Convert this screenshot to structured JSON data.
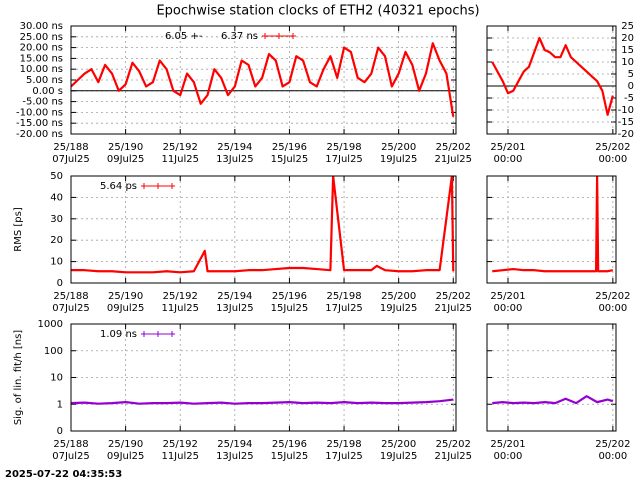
{
  "title": "Epochwise station clocks of ETH2 (40321 epochs)",
  "timestamp": "2025-07-22 04:35:53",
  "chart_data": [
    {
      "type": "line",
      "grid": true,
      "zeroaxis": true,
      "xlim": [
        188,
        202.1
      ],
      "ylim": [
        -20,
        30
      ],
      "xticks": [
        {
          "value": 188,
          "label": "25/188"
        },
        {
          "value": 190,
          "label": "25/190"
        },
        {
          "value": 192,
          "label": "25/192"
        },
        {
          "value": 194,
          "label": "25/194"
        },
        {
          "value": 196,
          "label": "25/196"
        },
        {
          "value": 198,
          "label": "25/198"
        },
        {
          "value": 200,
          "label": "25/200"
        },
        {
          "value": 202,
          "label": "25/202"
        }
      ],
      "xtick_dates": [
        "07Jul25",
        "09Jul25",
        "11Jul25",
        "13Jul25",
        "15Jul25",
        "17Jul25",
        "19Jul25",
        "21Jul25"
      ],
      "yticks": [
        {
          "value": -20,
          "label": "-20.00 ns"
        },
        {
          "value": -15,
          "label": "-15.00 ns"
        },
        {
          "value": -10,
          "label": "-10.00 ns"
        },
        {
          "value": -5,
          "label": "-5.00 ns"
        },
        {
          "value": 0,
          "label": "0.00 s"
        },
        {
          "value": 5,
          "label": "5.00 ns"
        },
        {
          "value": 10,
          "label": "10.00 ns"
        },
        {
          "value": 15,
          "label": "15.00 ns"
        },
        {
          "value": 20,
          "label": "20.00 ns"
        },
        {
          "value": 25,
          "label": "25.00 ns"
        },
        {
          "value": 30,
          "label": "30.00 ns"
        }
      ],
      "legend_prefix": "6.05 +-",
      "x": [
        188,
        188.25,
        188.5,
        188.75,
        189,
        189.25,
        189.5,
        189.75,
        190,
        190.25,
        190.5,
        190.75,
        191,
        191.25,
        191.5,
        191.75,
        192,
        192.25,
        192.5,
        192.75,
        193,
        193.25,
        193.5,
        193.75,
        194,
        194.25,
        194.5,
        194.75,
        195,
        195.25,
        195.5,
        195.75,
        196,
        196.25,
        196.5,
        196.75,
        197,
        197.25,
        197.5,
        197.75,
        198,
        198.25,
        198.5,
        198.75,
        199,
        199.25,
        199.5,
        199.75,
        200,
        200.25,
        200.5,
        200.75,
        201,
        201.25,
        201.5,
        201.75,
        202
      ],
      "series": [
        {
          "name": "6.37 ns",
          "color": "#ff0000",
          "values": [
            2,
            5,
            8,
            10,
            4,
            12,
            8,
            0,
            3,
            13,
            9,
            2,
            4,
            14,
            10,
            0,
            -2,
            8,
            4,
            -6,
            -2,
            10,
            6,
            -2,
            2,
            14,
            12,
            2,
            6,
            17,
            14,
            2,
            4,
            16,
            14,
            4,
            2,
            10,
            16,
            6,
            20,
            18,
            6,
            4,
            8,
            20,
            16,
            2,
            8,
            18,
            12,
            0,
            8,
            22,
            14,
            8,
            -12
          ]
        }
      ]
    },
    {
      "type": "line",
      "grid": true,
      "zeroaxis": true,
      "ytick_side": "right",
      "xlim": [
        200.8,
        202.03
      ],
      "ylim": [
        -20,
        25
      ],
      "xticks": [
        {
          "value": 201,
          "label": "25/201"
        },
        {
          "value": 202,
          "label": "25/202"
        }
      ],
      "xtick_dates": [
        "00:00",
        "00:00"
      ],
      "yticks": [
        -20,
        -15,
        -10,
        -5,
        0,
        5,
        10,
        15,
        20,
        25
      ],
      "x": [
        200.85,
        200.9,
        200.95,
        201,
        201.05,
        201.1,
        201.15,
        201.2,
        201.25,
        201.3,
        201.35,
        201.4,
        201.45,
        201.5,
        201.55,
        201.6,
        201.65,
        201.7,
        201.75,
        201.8,
        201.85,
        201.9,
        201.95,
        202
      ],
      "series": [
        {
          "color": "#ff0000",
          "values": [
            10,
            6,
            2,
            -3,
            -2,
            2,
            6,
            8,
            14,
            20,
            15,
            14,
            12,
            12,
            17,
            12,
            10,
            8,
            6,
            4,
            2,
            -2,
            -12,
            -4
          ]
        }
      ]
    },
    {
      "type": "line",
      "grid": true,
      "ylabel": "RMS [ps]",
      "xlim": [
        188,
        202.1
      ],
      "ylim": [
        0,
        50
      ],
      "xticks": [
        {
          "value": 188,
          "label": "25/188"
        },
        {
          "value": 190,
          "label": "25/190"
        },
        {
          "value": 192,
          "label": "25/192"
        },
        {
          "value": 194,
          "label": "25/194"
        },
        {
          "value": 196,
          "label": "25/196"
        },
        {
          "value": 198,
          "label": "25/198"
        },
        {
          "value": 200,
          "label": "25/200"
        },
        {
          "value": 202,
          "label": "25/202"
        }
      ],
      "xtick_dates": [
        "07Jul25",
        "09Jul25",
        "11Jul25",
        "13Jul25",
        "15Jul25",
        "17Jul25",
        "19Jul25",
        "21Jul25"
      ],
      "yticks": [
        0,
        10,
        20,
        30,
        40,
        50
      ],
      "x": [
        188,
        188.5,
        189,
        189.5,
        190,
        190.5,
        191,
        191.5,
        192,
        192.5,
        192.9,
        193,
        193.5,
        194,
        194.5,
        195,
        195.5,
        196,
        196.5,
        197,
        197.5,
        197.6,
        198,
        198.5,
        199,
        199.2,
        199.5,
        200,
        200.5,
        201,
        201.5,
        201.95,
        202
      ],
      "series": [
        {
          "name": "5.64 ps",
          "color": "#ff0000",
          "values": [
            6,
            6,
            5.5,
            5.5,
            5,
            5,
            5,
            5.5,
            5,
            5.5,
            15,
            5.5,
            5.5,
            5.5,
            6,
            6,
            6.5,
            7,
            7,
            6.5,
            6,
            50,
            6,
            6,
            6,
            8,
            6,
            5.5,
            5.5,
            6,
            6,
            50,
            5.5
          ]
        }
      ]
    },
    {
      "type": "line",
      "grid": true,
      "ytick_labels": false,
      "xlim": [
        200.8,
        202.03
      ],
      "ylim": [
        0,
        50
      ],
      "xticks": [
        {
          "value": 201,
          "label": "25/201"
        },
        {
          "value": 202,
          "label": "25/202"
        }
      ],
      "xtick_dates": [
        "00:00",
        "00:00"
      ],
      "yticks": [
        0,
        10,
        20,
        30,
        40,
        50
      ],
      "x": [
        200.85,
        200.95,
        201.05,
        201.15,
        201.25,
        201.35,
        201.45,
        201.55,
        201.65,
        201.75,
        201.84,
        201.85,
        201.86,
        201.95,
        202
      ],
      "series": [
        {
          "color": "#ff0000",
          "values": [
            5.5,
            6,
            6.5,
            6,
            6,
            5.5,
            5.5,
            5.5,
            5.5,
            5.5,
            5.5,
            50,
            5.5,
            5.5,
            6
          ]
        }
      ]
    },
    {
      "type": "line",
      "grid": true,
      "log": true,
      "ylabel": "Sig. of lin. fit/h [ns]",
      "xlim": [
        188,
        202.1
      ],
      "ylim": [
        0.1,
        1000
      ],
      "xticks": [
        {
          "value": 188,
          "label": "25/188"
        },
        {
          "value": 190,
          "label": "25/190"
        },
        {
          "value": 192,
          "label": "25/192"
        },
        {
          "value": 194,
          "label": "25/194"
        },
        {
          "value": 196,
          "label": "25/196"
        },
        {
          "value": 198,
          "label": "25/198"
        },
        {
          "value": 200,
          "label": "25/200"
        },
        {
          "value": 202,
          "label": "25/202"
        }
      ],
      "xtick_dates": [
        "07Jul25",
        "09Jul25",
        "11Jul25",
        "13Jul25",
        "15Jul25",
        "17Jul25",
        "19Jul25",
        "21Jul25"
      ],
      "yticks": [
        {
          "value": 0.1,
          "label": "0"
        },
        1,
        10,
        100,
        1000
      ],
      "x": [
        188,
        188.5,
        189,
        189.5,
        190,
        190.5,
        191,
        191.5,
        192,
        192.5,
        193,
        193.5,
        194,
        194.5,
        195,
        195.5,
        196,
        196.5,
        197,
        197.5,
        198,
        198.5,
        199,
        199.5,
        200,
        200.5,
        201,
        201.5,
        202
      ],
      "series": [
        {
          "name": "1.09 ns",
          "color": "#9400d3",
          "values": [
            1.1,
            1.15,
            1.05,
            1.1,
            1.2,
            1.05,
            1.1,
            1.1,
            1.15,
            1.05,
            1.1,
            1.15,
            1.05,
            1.1,
            1.1,
            1.15,
            1.2,
            1.1,
            1.15,
            1.1,
            1.2,
            1.1,
            1.15,
            1.1,
            1.1,
            1.15,
            1.2,
            1.3,
            1.5
          ]
        }
      ]
    },
    {
      "type": "line",
      "grid": true,
      "log": true,
      "ytick_labels": false,
      "xlim": [
        200.8,
        202.03
      ],
      "ylim": [
        0.1,
        1000
      ],
      "xticks": [
        {
          "value": 201,
          "label": "25/201"
        },
        {
          "value": 202,
          "label": "25/202"
        }
      ],
      "xtick_dates": [
        "00:00",
        "00:00"
      ],
      "yticks": [
        0.1,
        1,
        10,
        100,
        1000
      ],
      "x": [
        200.85,
        200.95,
        201.05,
        201.15,
        201.25,
        201.35,
        201.45,
        201.55,
        201.65,
        201.75,
        201.85,
        201.95,
        202
      ],
      "series": [
        {
          "color": "#9400d3",
          "values": [
            1.1,
            1.2,
            1.1,
            1.15,
            1.1,
            1.2,
            1.1,
            1.6,
            1.1,
            2,
            1.2,
            1.5,
            1.3
          ]
        }
      ]
    }
  ]
}
